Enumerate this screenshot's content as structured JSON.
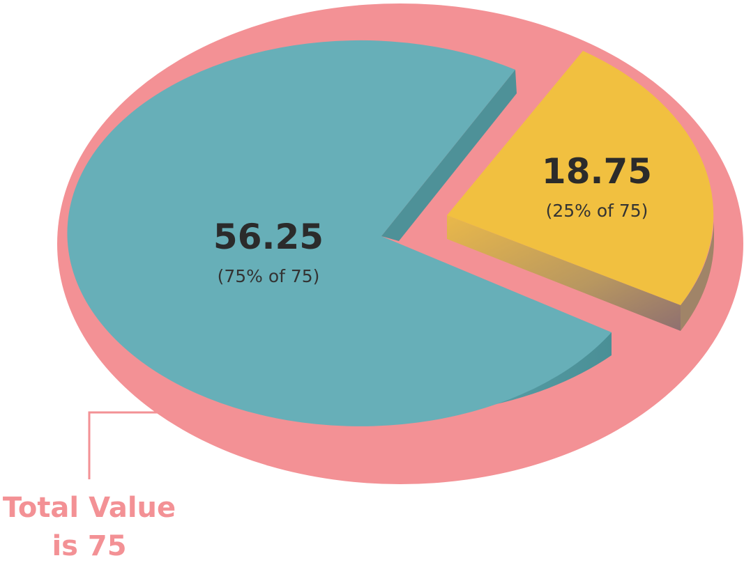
{
  "chart_data": {
    "type": "pie",
    "total": 75,
    "slices": [
      {
        "value": 56.25,
        "value_label": "56.25",
        "percent_label": "(75% of 75)",
        "percent": 75,
        "color": "#67afb8",
        "side_color": "#4e9198"
      },
      {
        "value": 18.75,
        "value_label": "18.75",
        "percent_label": "(25% of 75)",
        "percent": 25,
        "color": "#f1c040",
        "side_color": "#b89a58"
      }
    ],
    "annotation": {
      "line1": "Total Value",
      "line2": "is 75",
      "color": "#f39195"
    },
    "background_ellipse_color": "#f39195"
  }
}
